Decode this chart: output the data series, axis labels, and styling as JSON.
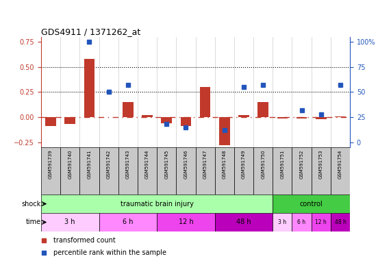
{
  "title": "GDS4911 / 1371262_at",
  "samples": [
    "GSM591739",
    "GSM591740",
    "GSM591741",
    "GSM591742",
    "GSM591743",
    "GSM591744",
    "GSM591745",
    "GSM591746",
    "GSM591747",
    "GSM591748",
    "GSM591749",
    "GSM591750",
    "GSM591751",
    "GSM591752",
    "GSM591753",
    "GSM591754"
  ],
  "bar_values": [
    -0.09,
    -0.07,
    0.58,
    0.0,
    0.15,
    0.02,
    -0.06,
    -0.09,
    0.3,
    -0.28,
    0.02,
    0.15,
    -0.01,
    -0.01,
    -0.02,
    0.01
  ],
  "dot_values": [
    null,
    null,
    100,
    50,
    57,
    null,
    18,
    15,
    null,
    12,
    55,
    57,
    null,
    32,
    28,
    57
  ],
  "bar_color": "#c0392b",
  "dot_color": "#2255bb",
  "ylim_left": [
    -0.3,
    0.8
  ],
  "yticks_left": [
    -0.25,
    0.0,
    0.25,
    0.5,
    0.75
  ],
  "yticks_right": [
    0,
    25,
    50,
    75,
    100
  ],
  "dotted_lines": [
    0.25,
    0.5
  ],
  "shock_groups": [
    {
      "label": "traumatic brain injury",
      "start": 0,
      "end": 11,
      "color": "#aaffaa"
    },
    {
      "label": "control",
      "start": 12,
      "end": 15,
      "color": "#44cc44"
    }
  ],
  "time_groups": [
    {
      "label": "3 h",
      "start": 0,
      "end": 2,
      "color": "#ffccff"
    },
    {
      "label": "6 h",
      "start": 3,
      "end": 5,
      "color": "#ff88ff"
    },
    {
      "label": "12 h",
      "start": 6,
      "end": 8,
      "color": "#ee44ee"
    },
    {
      "label": "48 h",
      "start": 9,
      "end": 11,
      "color": "#bb00bb"
    },
    {
      "label": "3 h",
      "start": 12,
      "end": 12,
      "color": "#ffccff"
    },
    {
      "label": "6 h",
      "start": 13,
      "end": 13,
      "color": "#ff88ff"
    },
    {
      "label": "12 h",
      "start": 14,
      "end": 14,
      "color": "#ee44ee"
    },
    {
      "label": "48 h",
      "start": 15,
      "end": 15,
      "color": "#bb00bb"
    }
  ],
  "legend": [
    {
      "label": "transformed count",
      "color": "#c0392b"
    },
    {
      "label": "percentile rank within the sample",
      "color": "#2255bb"
    }
  ],
  "sample_bg": "#c8c8c8",
  "bg_color": "#ffffff"
}
